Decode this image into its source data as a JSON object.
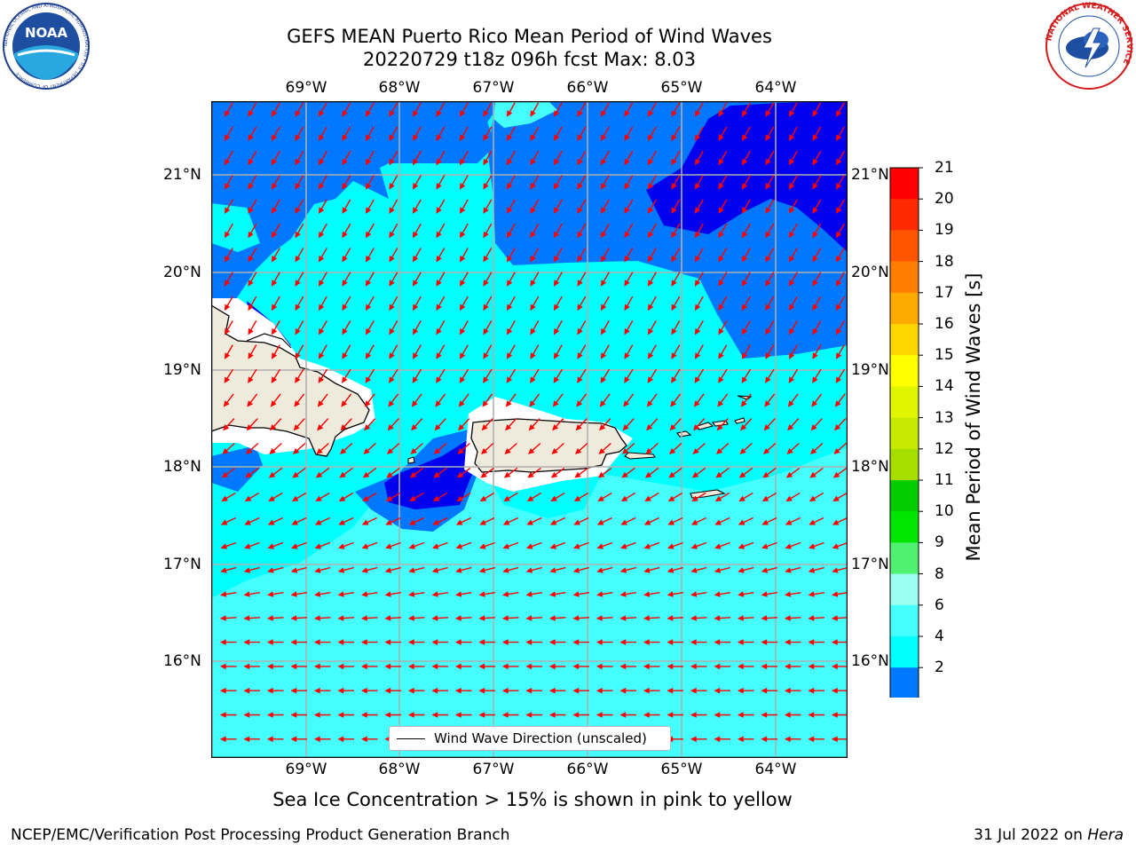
{
  "title": {
    "line1": "GEFS MEAN Puerto Rico Mean Period of Wind Waves",
    "line2": "20220729 t18z 096h fcst   Max: 8.03"
  },
  "map": {
    "lon_labels": [
      "69°W",
      "68°W",
      "67°W",
      "66°W",
      "65°W",
      "64°W"
    ],
    "lat_labels": [
      "21°N",
      "20°N",
      "19°N",
      "18°N",
      "17°N",
      "16°N"
    ],
    "legend_label": "Wind Wave Direction (unscaled)",
    "arrow_color": "#ff0000",
    "land_color": "#efebdc"
  },
  "colorbar": {
    "label": "Mean Period of Wind Waves [s]",
    "ticks": [
      "21",
      "20",
      "19",
      "18",
      "17",
      "16",
      "15",
      "14",
      "13",
      "12",
      "11",
      "10",
      "9",
      "8",
      "6",
      "4",
      "2"
    ],
    "colors": [
      "#ff0000",
      "#ff2a00",
      "#ff5500",
      "#ff8000",
      "#ffaa00",
      "#ffd500",
      "#ffff00",
      "#e2f500",
      "#c6eb00",
      "#a6de00",
      "#00cc00",
      "#00e600",
      "#50f070",
      "#9dfff0",
      "#45ffff",
      "#00ffff",
      "#0077ff",
      "#0000ee"
    ]
  },
  "subtitle": "Sea Ice Concentration > 15% is shown in pink to yellow",
  "footer": {
    "left": "NCEP/EMC/Verification Post Processing Product Generation Branch",
    "right_date": "31 Jul 2022 on ",
    "right_host": "Hera"
  },
  "logos": {
    "noaa_text": "NOAA",
    "noaa_ring": "NATIONAL OCEANIC AND ATMOSPHERIC ADMINISTRATION • U.S. DEPARTMENT OF COMMERCE",
    "nws_ring": "NATIONAL WEATHER SERVICE"
  }
}
